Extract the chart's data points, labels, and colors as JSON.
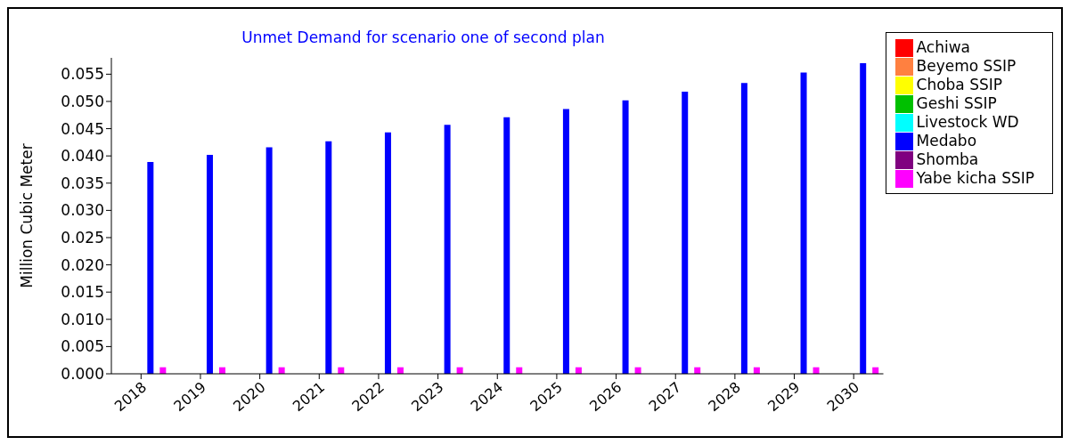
{
  "chart_data": {
    "type": "bar",
    "title": "Unmet Demand for scenario one of second plan",
    "ylabel": "Million Cubic Meter",
    "categories": [
      "2018",
      "2019",
      "2020",
      "2021",
      "2022",
      "2023",
      "2024",
      "2025",
      "2026",
      "2027",
      "2028",
      "2029",
      "2030"
    ],
    "series": [
      {
        "name": "Achiwa",
        "color": "#ff0000",
        "values": [
          0,
          0,
          0,
          0,
          0,
          0,
          0,
          0,
          0,
          0,
          0,
          0,
          0
        ]
      },
      {
        "name": "Beyemo SSIP",
        "color": "#ff8040",
        "values": [
          0,
          0,
          0,
          0,
          0,
          0,
          0,
          0,
          0,
          0,
          0,
          0,
          0
        ]
      },
      {
        "name": "Choba SSIP",
        "color": "#ffff00",
        "values": [
          0,
          0,
          0,
          0,
          0,
          0,
          0,
          0,
          0,
          0,
          0,
          0,
          0
        ]
      },
      {
        "name": "Geshi SSIP",
        "color": "#00c000",
        "values": [
          0,
          0,
          0,
          0,
          0,
          0,
          0,
          0,
          0,
          0,
          0,
          0,
          0
        ]
      },
      {
        "name": "Livestock WD",
        "color": "#00ffff",
        "values": [
          0,
          0,
          0,
          0,
          0,
          0,
          0,
          0,
          0,
          0,
          0,
          0,
          0
        ]
      },
      {
        "name": "Medabo",
        "color": "#0000ff",
        "values": [
          0.0389,
          0.0402,
          0.0416,
          0.0427,
          0.0443,
          0.0457,
          0.0471,
          0.0486,
          0.0502,
          0.0518,
          0.0534,
          0.0553,
          0.057
        ]
      },
      {
        "name": "Shomba",
        "color": "#800080",
        "values": [
          0,
          0,
          0,
          0,
          0,
          0,
          0,
          0,
          0,
          0,
          0,
          0,
          0
        ]
      },
      {
        "name": "Yabe kicha SSIP",
        "color": "#ff00ff",
        "values": [
          0.0012,
          0.0012,
          0.0012,
          0.0012,
          0.0012,
          0.0012,
          0.0012,
          0.0012,
          0.0012,
          0.0012,
          0.0012,
          0.0012,
          0.0012
        ]
      }
    ],
    "ylim": [
      0,
      0.058
    ],
    "yticks": [
      {
        "value": 0,
        "label": "0.000"
      },
      {
        "value": 0.005,
        "label": "0.005"
      },
      {
        "value": 0.01,
        "label": "0.010"
      },
      {
        "value": 0.015,
        "label": "0.015"
      },
      {
        "value": 0.02,
        "label": "0.020"
      },
      {
        "value": 0.025,
        "label": "0.025"
      },
      {
        "value": 0.03,
        "label": "0.030"
      },
      {
        "value": 0.035,
        "label": "0.035"
      },
      {
        "value": 0.04,
        "label": "0.040"
      },
      {
        "value": 0.045,
        "label": "0.045"
      },
      {
        "value": 0.05,
        "label": "0.050"
      },
      {
        "value": 0.055,
        "label": "0.055"
      }
    ],
    "grid": false,
    "legend": "right"
  }
}
